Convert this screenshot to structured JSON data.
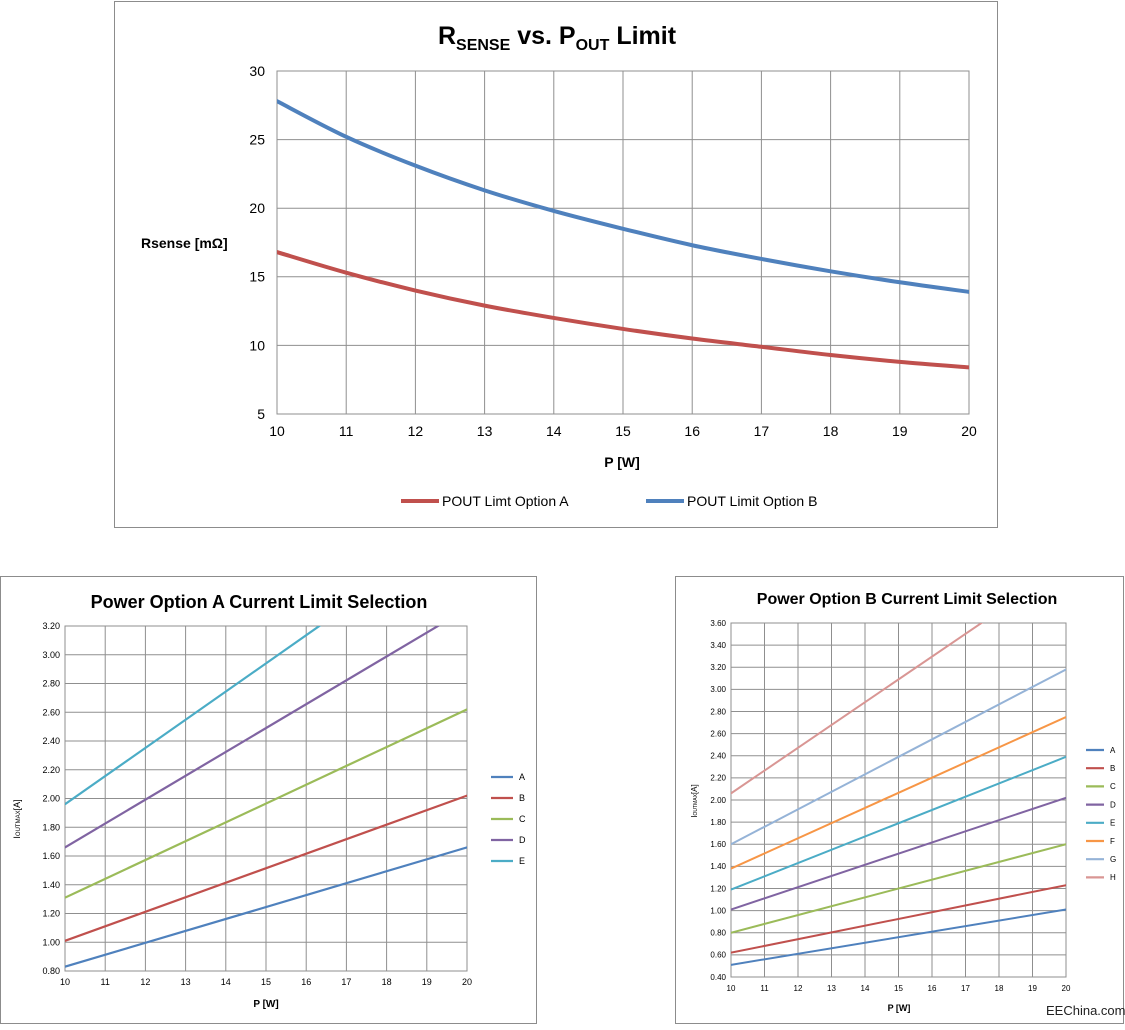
{
  "chart_data": [
    {
      "type": "line",
      "title_parts": {
        "r": "R",
        "r_sub": "SENSE",
        "vs": " vs. P",
        "p_sub": "OUT",
        "tail": " Limit"
      },
      "xlabel": "P [W]",
      "ylabel": "Rsense [mΩ]",
      "xlim": [
        10,
        20
      ],
      "ylim": [
        5,
        30
      ],
      "x_ticks": [
        "10",
        "11",
        "12",
        "13",
        "14",
        "15",
        "16",
        "17",
        "18",
        "19",
        "20"
      ],
      "y_ticks": [
        "5",
        "10",
        "15",
        "20",
        "25",
        "30"
      ],
      "grid": true,
      "legend_position": "bottom",
      "series": [
        {
          "name": "POUT Limt Option A",
          "color": "#c0504d",
          "x": [
            10,
            11,
            12,
            13,
            14,
            15,
            16,
            17,
            18,
            19,
            20
          ],
          "values": [
            16.8,
            15.3,
            14.0,
            12.9,
            12.0,
            11.2,
            10.5,
            9.9,
            9.3,
            8.8,
            8.4
          ]
        },
        {
          "name": "POUT Limit Option B",
          "color": "#4f81bd",
          "x": [
            10,
            11,
            12,
            13,
            14,
            15,
            16,
            17,
            18,
            19,
            20
          ],
          "values": [
            27.8,
            25.2,
            23.1,
            21.3,
            19.8,
            18.5,
            17.3,
            16.3,
            15.4,
            14.6,
            13.9
          ]
        }
      ]
    },
    {
      "type": "line",
      "title": "Power Option A Current Limit Selection",
      "xlabel": "P [W]",
      "ylabel_main": "I",
      "ylabel_sub": "OUTMAX",
      "ylabel_tail": "[A]",
      "xlim": [
        10,
        20
      ],
      "ylim": [
        0.8,
        3.2
      ],
      "x_ticks": [
        "10",
        "11",
        "12",
        "13",
        "14",
        "15",
        "16",
        "17",
        "18",
        "19",
        "20"
      ],
      "y_ticks": [
        "0.80",
        "1.00",
        "1.20",
        "1.40",
        "1.60",
        "1.80",
        "2.00",
        "2.20",
        "2.40",
        "2.60",
        "2.80",
        "3.00",
        "3.20"
      ],
      "grid": true,
      "legend_position": "right",
      "series": [
        {
          "name": "A",
          "color": "#4f81bd",
          "x": [
            10,
            20
          ],
          "values": [
            0.83,
            1.66
          ]
        },
        {
          "name": "B",
          "color": "#c0504d",
          "x": [
            10,
            20
          ],
          "values": [
            1.01,
            2.02
          ]
        },
        {
          "name": "C",
          "color": "#9bbb59",
          "x": [
            10,
            20
          ],
          "values": [
            1.31,
            2.62
          ]
        },
        {
          "name": "D",
          "color": "#8064a2",
          "x": [
            10,
            20
          ],
          "values": [
            1.66,
            3.32
          ]
        },
        {
          "name": "E",
          "color": "#4bacc6",
          "x": [
            10,
            20
          ],
          "values": [
            1.96,
            3.92
          ]
        }
      ]
    },
    {
      "type": "line",
      "title": "Power Option B Current Limit Selection",
      "xlabel": "P [W]",
      "ylabel_main": "I",
      "ylabel_sub": "OUTMAX",
      "ylabel_tail": "[A]",
      "xlim": [
        10,
        20
      ],
      "ylim": [
        0.4,
        3.6
      ],
      "x_ticks": [
        "10",
        "11",
        "12",
        "13",
        "14",
        "15",
        "16",
        "17",
        "18",
        "19",
        "20"
      ],
      "y_ticks": [
        "0.40",
        "0.60",
        "0.80",
        "1.00",
        "1.20",
        "1.40",
        "1.60",
        "1.80",
        "2.00",
        "2.20",
        "2.40",
        "2.60",
        "2.80",
        "3.00",
        "3.20",
        "3.40",
        "3.60"
      ],
      "grid": true,
      "legend_position": "right",
      "series": [
        {
          "name": "A",
          "color": "#4f81bd",
          "x": [
            10,
            20
          ],
          "values": [
            0.51,
            1.01
          ]
        },
        {
          "name": "B",
          "color": "#c0504d",
          "x": [
            10,
            20
          ],
          "values": [
            0.62,
            1.23
          ]
        },
        {
          "name": "C",
          "color": "#9bbb59",
          "x": [
            10,
            20
          ],
          "values": [
            0.8,
            1.6
          ]
        },
        {
          "name": "D",
          "color": "#8064a2",
          "x": [
            10,
            20
          ],
          "values": [
            1.01,
            2.02
          ]
        },
        {
          "name": "E",
          "color": "#4bacc6",
          "x": [
            10,
            20
          ],
          "values": [
            1.19,
            2.39
          ]
        },
        {
          "name": "F",
          "color": "#f79646",
          "x": [
            10,
            20
          ],
          "values": [
            1.38,
            2.75
          ]
        },
        {
          "name": "G",
          "color": "#95b3d7",
          "x": [
            10,
            20
          ],
          "values": [
            1.6,
            3.18
          ]
        },
        {
          "name": "H",
          "color": "#d99694",
          "x": [
            10,
            20
          ],
          "values": [
            2.06,
            4.12
          ]
        }
      ]
    }
  ],
  "watermark": "EEChina.com"
}
